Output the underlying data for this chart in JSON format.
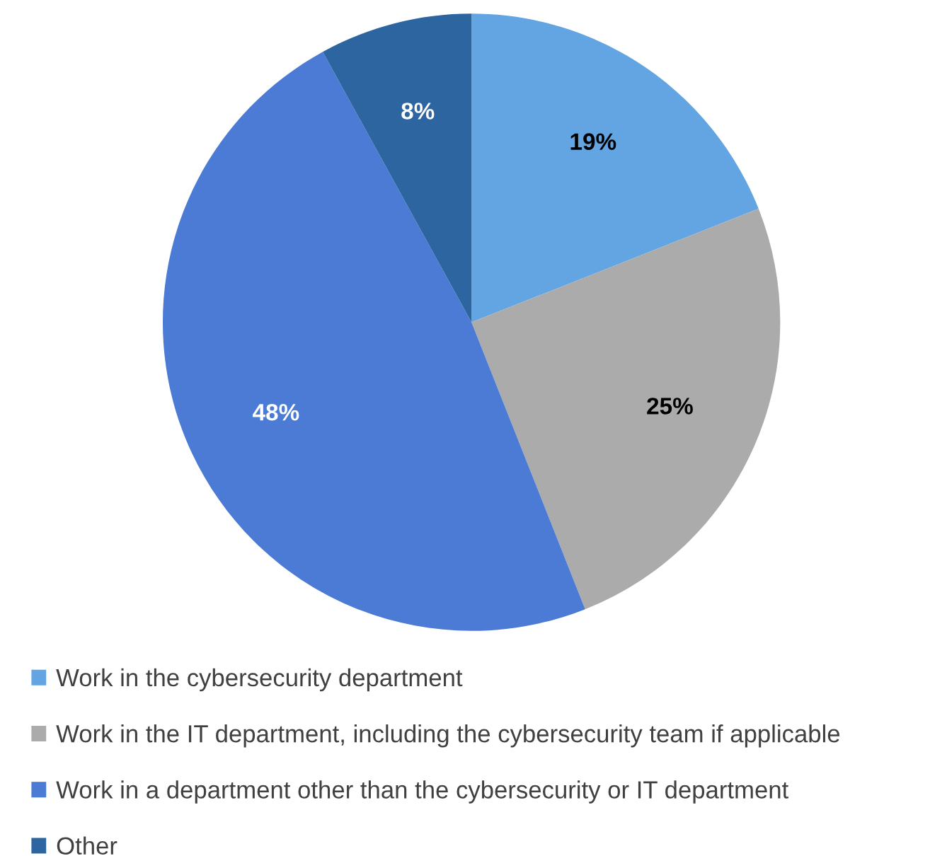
{
  "chart_data": {
    "type": "pie",
    "categories": [
      "Work in the cybersecurity department",
      "Work in the IT department, including the cybersecurity team if applicable",
      "Work in a department other than the cybersecurity or IT department",
      "Other"
    ],
    "values": [
      19,
      25,
      48,
      8
    ],
    "value_labels": [
      "19%",
      "25%",
      "48%",
      "8%"
    ],
    "colors": [
      "#62a5e2",
      "#ababab",
      "#4b7bd4",
      "#2c659f"
    ],
    "legend": "bottom"
  }
}
